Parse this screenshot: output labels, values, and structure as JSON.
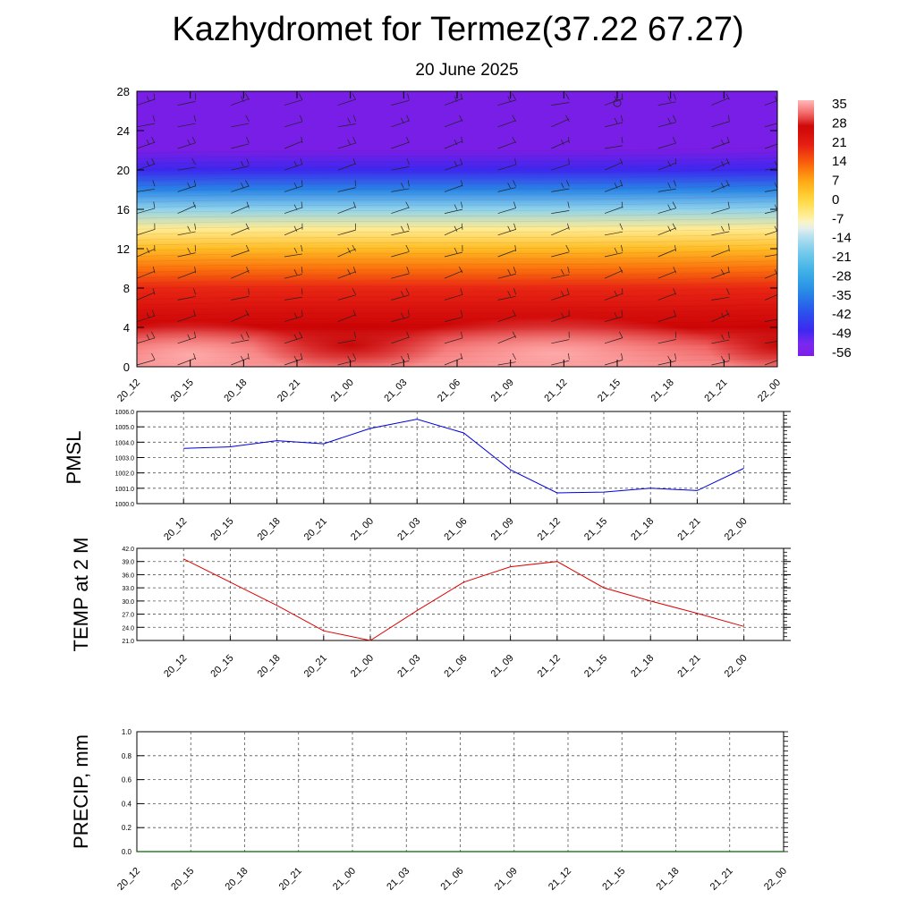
{
  "header": {
    "title": "Kazhydromet for Termez(37.22 67.27)",
    "subtitle": "20 June 2025"
  },
  "colors": {
    "pmsl_line": "#0000dd",
    "temp_line": "#dd0000",
    "precip_line": "#006600",
    "colorbar_top": "#ffb6b6",
    "colorbar_bottom": "#8a2be2"
  },
  "chart_data": [
    {
      "type": "heatmap",
      "title": "",
      "xlabel": "",
      "ylabel": "",
      "x": [
        "20_12",
        "20_15",
        "20_18",
        "20_21",
        "21_00",
        "21_03",
        "21_06",
        "21_09",
        "21_12",
        "21_15",
        "21_18",
        "21_21",
        "22_00"
      ],
      "y_ticks": [
        0,
        4,
        8,
        12,
        16,
        20,
        24,
        28
      ],
      "ylim": [
        0,
        28
      ],
      "colorbar_labels": [
        "35",
        "28",
        "21",
        "14",
        "7",
        "0",
        "-7",
        "-14",
        "-21",
        "-28",
        "-35",
        "-42",
        "-49",
        "-56"
      ],
      "colorbar_range": [
        -60,
        38
      ],
      "temperature_profile": {
        "levels": [
          0,
          2,
          4,
          6,
          8,
          10,
          12,
          14,
          16,
          18,
          20,
          22,
          28
        ],
        "values": [
          35,
          32,
          28,
          24,
          20,
          12,
          4,
          -6,
          -18,
          -36,
          -50,
          -60,
          -62
        ]
      },
      "wind_barbs": true,
      "grid": false
    },
    {
      "type": "line",
      "title": "",
      "xlabel": "",
      "ylabel": "PMSL",
      "x": [
        "20_12",
        "20_15",
        "20_18",
        "20_21",
        "21_00",
        "21_03",
        "21_06",
        "21_09",
        "21_12",
        "21_15",
        "21_18",
        "21_21",
        "22_00"
      ],
      "y_ticks": [
        "1000.0",
        "1001.0",
        "1002.0",
        "1003.0",
        "1004.0",
        "1005.0",
        "1006.0"
      ],
      "ylim": [
        1000.0,
        1006.0
      ],
      "series": [
        {
          "values": [
            1003.6,
            1003.7,
            1004.1,
            1003.9,
            1004.9,
            1005.5,
            1004.6,
            1002.2,
            1000.7,
            1000.75,
            1001.0,
            1000.85,
            1002.3
          ]
        }
      ],
      "grid": true
    },
    {
      "type": "line",
      "title": "",
      "xlabel": "",
      "ylabel": "TEMP at 2 M",
      "x": [
        "20_12",
        "20_15",
        "20_18",
        "20_21",
        "21_00",
        "21_03",
        "21_06",
        "21_09",
        "21_12",
        "21_15",
        "21_18",
        "21_21",
        "22_00"
      ],
      "y_ticks": [
        "21.0",
        "24.0",
        "27.0",
        "30.0",
        "33.0",
        "36.0",
        "39.0",
        "42.0"
      ],
      "ylim": [
        21.0,
        42.0
      ],
      "series": [
        {
          "values": [
            39.6,
            34.3,
            29.0,
            23.2,
            21.0,
            27.8,
            34.3,
            37.8,
            39.0,
            33.0,
            30.0,
            27.2,
            24.2
          ]
        }
      ],
      "grid": true
    },
    {
      "type": "line",
      "title": "",
      "xlabel": "",
      "ylabel": "PRECIP, mm",
      "x": [
        "20_12",
        "20_15",
        "20_18",
        "20_21",
        "21_00",
        "21_03",
        "21_06",
        "21_09",
        "21_12",
        "21_15",
        "21_18",
        "21_21",
        "22_00"
      ],
      "y_ticks": [
        "0.0",
        "0.2",
        "0.4",
        "0.6",
        "0.8",
        "1.0"
      ],
      "ylim": [
        0.0,
        1.0
      ],
      "series": [
        {
          "values": [
            0,
            0,
            0,
            0,
            0,
            0,
            0,
            0,
            0,
            0,
            0,
            0,
            0
          ]
        }
      ],
      "grid": true
    }
  ]
}
